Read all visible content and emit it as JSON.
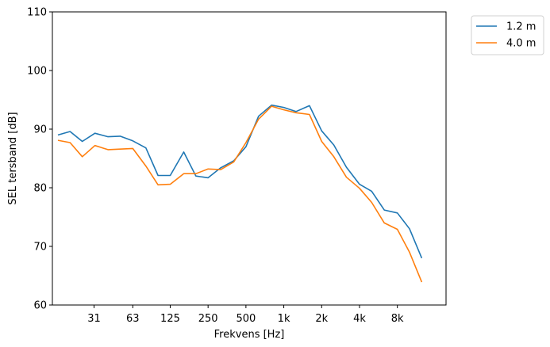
{
  "chart_data": {
    "type": "line",
    "title": "",
    "xlabel": "Frekvens [Hz]",
    "ylabel": "SEL tersband [dB]",
    "ylim": [
      60,
      110
    ],
    "yticks": [
      60,
      70,
      80,
      90,
      100,
      110
    ],
    "xscale": "log",
    "xticks": [
      {
        "value": 31,
        "label": "31"
      },
      {
        "value": 63,
        "label": "63"
      },
      {
        "value": 125,
        "label": "125"
      },
      {
        "value": 250,
        "label": "250"
      },
      {
        "value": 500,
        "label": "500"
      },
      {
        "value": 1000,
        "label": "1k"
      },
      {
        "value": 2000,
        "label": "2k"
      },
      {
        "value": 4000,
        "label": "4k"
      },
      {
        "value": 8000,
        "label": "8k"
      }
    ],
    "x": [
      16,
      20,
      25,
      31.5,
      40,
      50,
      63,
      80,
      100,
      125,
      160,
      200,
      250,
      315,
      400,
      500,
      630,
      800,
      1000,
      1250,
      1600,
      2000,
      2500,
      3150,
      4000,
      5000,
      6300,
      8000,
      10000,
      12500,
      16000
    ],
    "series": [
      {
        "name": "1.2 m",
        "color": "#1f77b4",
        "values": [
          89.0,
          89.6,
          87.9,
          89.3,
          88.7,
          88.8,
          88.0,
          86.8,
          82.1,
          82.1,
          86.1,
          82.0,
          81.7,
          83.4,
          84.6,
          87.0,
          92.2,
          94.1,
          93.7,
          93.0,
          94.0,
          89.7,
          87.3,
          83.5,
          80.6,
          79.4,
          76.2,
          75.7,
          73.0,
          68.0,
          null
        ]
      },
      {
        "name": "4.0 m",
        "color": "#ff7f0e",
        "values": [
          88.1,
          87.7,
          85.3,
          87.2,
          86.5,
          86.6,
          86.7,
          83.7,
          80.5,
          80.6,
          82.4,
          82.4,
          83.2,
          83.1,
          84.4,
          87.7,
          91.7,
          93.9,
          93.3,
          92.8,
          92.5,
          87.9,
          85.3,
          81.8,
          79.9,
          77.5,
          74.0,
          72.9,
          69.0,
          63.9,
          null
        ]
      }
    ],
    "legend": {
      "placement": "outside-top-right"
    },
    "grid": false
  }
}
